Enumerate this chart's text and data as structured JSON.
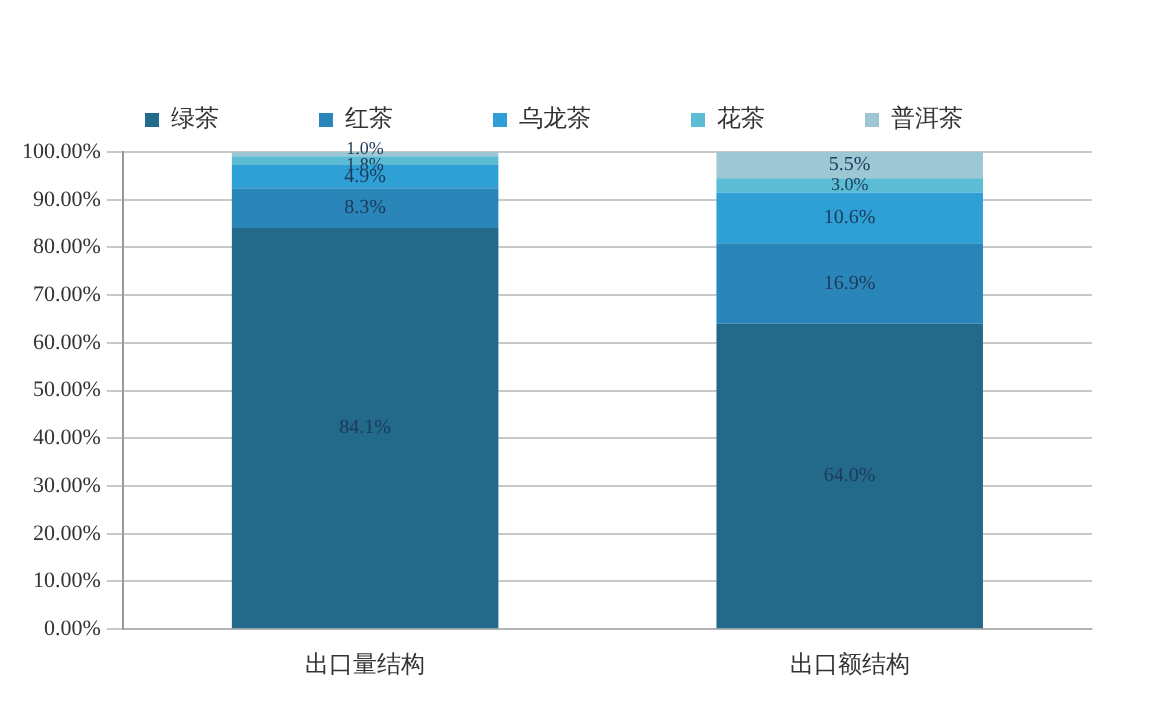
{
  "chart_data": {
    "type": "bar",
    "stacked": true,
    "categories": [
      "出口量结构",
      "出口额结构"
    ],
    "series": [
      {
        "name": "绿茶",
        "color": "#236a8a",
        "values": [
          84.1,
          64.0
        ],
        "value_labels": [
          "84.1%",
          "64.0%"
        ]
      },
      {
        "name": "红茶",
        "color": "#2a86b8",
        "values": [
          8.3,
          16.9
        ],
        "value_labels": [
          "8.3%",
          "16.9%"
        ]
      },
      {
        "name": "乌龙茶",
        "color": "#2ea0d6",
        "values": [
          4.9,
          10.6
        ],
        "value_labels": [
          "4.9%",
          "10.6%"
        ]
      },
      {
        "name": "花茶",
        "color": "#5bbcd4",
        "values": [
          1.8,
          3.0
        ],
        "value_labels": [
          "1.8%",
          "3.0%"
        ]
      },
      {
        "name": "普洱茶",
        "color": "#9cc7d3",
        "values": [
          1.0,
          5.5
        ],
        "value_labels": [
          "1.0%",
          "5.5%"
        ]
      }
    ],
    "ylim": [
      0,
      100
    ],
    "yticks": [
      {
        "value": 0,
        "label": "0.00%"
      },
      {
        "value": 10,
        "label": "10.00%"
      },
      {
        "value": 20,
        "label": "20.00%"
      },
      {
        "value": 30,
        "label": "30.00%"
      },
      {
        "value": 40,
        "label": "40.00%"
      },
      {
        "value": 50,
        "label": "50.00%"
      },
      {
        "value": 60,
        "label": "60.00%"
      },
      {
        "value": 70,
        "label": "70.00%"
      },
      {
        "value": 80,
        "label": "80.00%"
      },
      {
        "value": 90,
        "label": "90.00%"
      },
      {
        "value": 100,
        "label": "100.00%"
      }
    ],
    "grid": "y",
    "legend": "top"
  }
}
